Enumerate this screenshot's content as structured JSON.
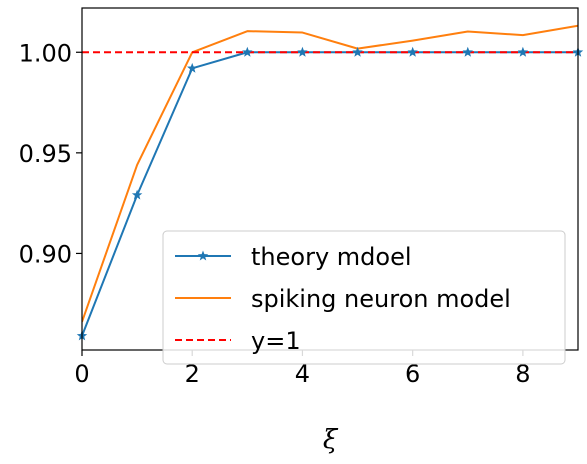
{
  "chart_data": {
    "type": "line",
    "xlabel": "ξ",
    "ylabel": "",
    "xlim": [
      0,
      9
    ],
    "ylim": [
      0.852,
      1.022
    ],
    "x_ticks": [
      0,
      2,
      4,
      6,
      8
    ],
    "x_tick_labels": [
      "0",
      "2",
      "4",
      "6",
      "8"
    ],
    "y_ticks": [
      0.9,
      0.95,
      1.0
    ],
    "y_tick_labels": [
      "0.90",
      "0.95",
      "1.00"
    ],
    "grid": false,
    "legend_position": "lower-right",
    "series": [
      {
        "name": "theory mdoel",
        "color": "#1f77b4",
        "marker": "star",
        "linestyle": "solid",
        "x": [
          0,
          1,
          2,
          3,
          4,
          5,
          6,
          7,
          8,
          9
        ],
        "values": [
          0.859,
          0.929,
          0.992,
          1.0,
          1.0,
          1.0,
          1.0,
          1.0,
          1.0,
          1.0
        ]
      },
      {
        "name": "spiking neuron model",
        "color": "#ff7f0e",
        "marker": "none",
        "linestyle": "solid",
        "x": [
          0,
          1,
          2,
          3,
          4,
          5,
          6,
          7,
          8,
          9
        ],
        "values": [
          0.866,
          0.944,
          1.0,
          1.0105,
          1.0098,
          1.0018,
          1.0058,
          1.0103,
          1.0085,
          1.0132
        ]
      },
      {
        "name": "y=1",
        "color": "#ff0000",
        "marker": "none",
        "linestyle": "dashed",
        "x": [
          0,
          9
        ],
        "values": [
          1.0,
          1.0
        ]
      }
    ]
  }
}
